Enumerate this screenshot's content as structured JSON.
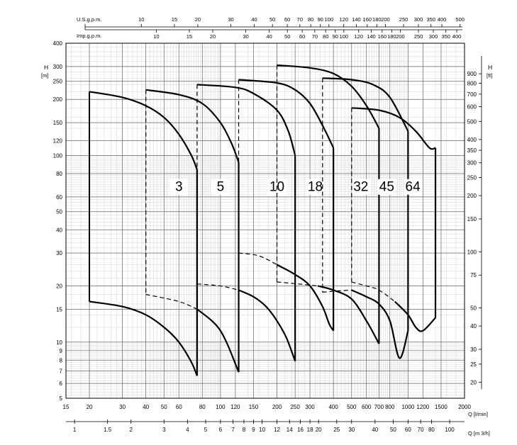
{
  "chart_data": {
    "type": "line",
    "x_scale": "log",
    "y_scale": "log",
    "xlim": [
      15,
      2000
    ],
    "ylim": [
      5,
      400
    ],
    "grid": true,
    "axes": {
      "x_bottom": {
        "label": "Q [l/min]",
        "ticks": [
          "15",
          "20",
          "30",
          "40",
          "50",
          "60",
          "80",
          "100",
          "120",
          "150",
          "200",
          "250",
          "300",
          "400",
          "500",
          "600",
          "700",
          "800",
          "1000",
          "1200",
          "1500",
          "2000"
        ]
      },
      "x_m3h": {
        "label": "Q [m 3/h]",
        "ticks": [
          {
            "v": 1,
            "t": "1"
          },
          {
            "v": 1.5,
            "t": "1.5"
          },
          {
            "v": 2,
            "t": "2"
          },
          {
            "v": 3,
            "t": "3"
          },
          {
            "v": 4,
            "t": "4"
          },
          {
            "v": 5,
            "t": "5"
          },
          {
            "v": 6,
            "t": "6"
          },
          {
            "v": 7,
            "t": "7"
          },
          {
            "v": 8,
            "t": "8"
          },
          {
            "v": 9,
            "t": "9"
          },
          {
            "v": 10,
            "t": "10"
          },
          {
            "v": 12,
            "t": "12"
          },
          {
            "v": 14,
            "t": "14"
          },
          {
            "v": 16,
            "t": "16"
          },
          {
            "v": 18,
            "t": "18"
          },
          {
            "v": 20,
            "t": "20"
          },
          {
            "v": 25,
            "t": "25"
          },
          {
            "v": 30,
            "t": "30"
          },
          {
            "v": 40,
            "t": "40"
          },
          {
            "v": 50,
            "t": "50"
          },
          {
            "v": 60,
            "t": "60"
          },
          {
            "v": 70,
            "t": "70"
          },
          {
            "v": 80,
            "t": "80"
          },
          {
            "v": 100,
            "t": "100"
          }
        ]
      },
      "x_usgpm": {
        "label": "U.S.g.p.m.",
        "ticks": [
          {
            "v": 10,
            "t": "10"
          },
          {
            "v": 15,
            "t": "15"
          },
          {
            "v": 20,
            "t": "20"
          },
          {
            "v": 30,
            "t": "30"
          },
          {
            "v": 40,
            "t": "40"
          },
          {
            "v": 50,
            "t": "50"
          },
          {
            "v": 60,
            "t": "60"
          },
          {
            "v": 70,
            "t": "70"
          },
          {
            "v": 80,
            "t": "80"
          },
          {
            "v": 90,
            "t": "90"
          },
          {
            "v": 100,
            "t": "100"
          },
          {
            "v": 120,
            "t": "120"
          },
          {
            "v": 140,
            "t": "140"
          },
          {
            "v": 160,
            "t": "160"
          },
          {
            "v": 180,
            "t": "180"
          },
          {
            "v": 200,
            "t": "200"
          },
          {
            "v": 250,
            "t": "250"
          },
          {
            "v": 300,
            "t": "300"
          },
          {
            "v": 350,
            "t": "350"
          },
          {
            "v": 400,
            "t": "400"
          },
          {
            "v": 500,
            "t": "500"
          }
        ]
      },
      "x_impgpm": {
        "label": "Imp.g.p.m.",
        "ticks": [
          {
            "v": 10,
            "t": "10"
          },
          {
            "v": 15,
            "t": "15"
          },
          {
            "v": 20,
            "t": "20"
          },
          {
            "v": 30,
            "t": "30"
          },
          {
            "v": 40,
            "t": "40"
          },
          {
            "v": 50,
            "t": "50"
          },
          {
            "v": 60,
            "t": "60"
          },
          {
            "v": 70,
            "t": "70"
          },
          {
            "v": 80,
            "t": "80"
          },
          {
            "v": 90,
            "t": "90"
          },
          {
            "v": 100,
            "t": "100"
          },
          {
            "v": 120,
            "t": "120"
          },
          {
            "v": 140,
            "t": "140"
          },
          {
            "v": 160,
            "t": "160"
          },
          {
            "v": 180,
            "t": "180"
          },
          {
            "v": 200,
            "t": "200"
          },
          {
            "v": 250,
            "t": "250"
          },
          {
            "v": 300,
            "t": "300"
          },
          {
            "v": 350,
            "t": "350"
          },
          {
            "v": 400,
            "t": "400"
          }
        ]
      },
      "y_left": {
        "label": "H",
        "unit": "[m]",
        "ticks": [
          "5",
          "6",
          "7",
          "8",
          "9",
          "10",
          "15",
          "20",
          "30",
          "40",
          "50",
          "60",
          "80",
          "100",
          "120",
          "150",
          "200",
          "250",
          "300",
          "400"
        ]
      },
      "y_right": {
        "label": "H",
        "unit": "[ft]",
        "ticks": [
          {
            "v": 20,
            "t": "20"
          },
          {
            "v": 25,
            "t": "25"
          },
          {
            "v": 30,
            "t": "30"
          },
          {
            "v": 40,
            "t": "40"
          },
          {
            "v": 50,
            "t": "50"
          },
          {
            "v": 75,
            "t": "75"
          },
          {
            "v": 100,
            "t": "100"
          },
          {
            "v": 150,
            "t": "150"
          },
          {
            "v": 200,
            "t": "200"
          },
          {
            "v": 250,
            "t": "250"
          },
          {
            "v": 300,
            "t": "300"
          },
          {
            "v": 350,
            "t": "350"
          },
          {
            "v": 400,
            "t": "400"
          },
          {
            "v": 500,
            "t": "500"
          },
          {
            "v": 600,
            "t": "600"
          },
          {
            "v": 700,
            "t": "700"
          },
          {
            "v": 800,
            "t": "800"
          },
          {
            "v": 900,
            "t": "900"
          }
        ]
      }
    },
    "series": [
      {
        "name": "3",
        "label_at": [
          60,
          65
        ],
        "q_min": 20,
        "q_max": 75,
        "max_curve": [
          [
            20,
            220
          ],
          [
            30,
            205
          ],
          [
            40,
            185
          ],
          [
            50,
            160
          ],
          [
            60,
            130
          ],
          [
            70,
            100
          ],
          [
            75,
            84
          ]
        ],
        "min_curve": [
          [
            20,
            16.5
          ],
          [
            30,
            15.5
          ],
          [
            40,
            14
          ],
          [
            50,
            12
          ],
          [
            60,
            10
          ],
          [
            70,
            7.8
          ],
          [
            75,
            6.6
          ]
        ],
        "dashed_left": [],
        "dashed_min": []
      },
      {
        "name": "5",
        "label_at": [
          100,
          65
        ],
        "q_min": 40,
        "q_max": 125,
        "max_curve": [
          [
            40,
            225
          ],
          [
            60,
            212
          ],
          [
            80,
            190
          ],
          [
            100,
            150
          ],
          [
            115,
            115
          ],
          [
            125,
            92
          ]
        ],
        "min_curve": [
          [
            75,
            15
          ],
          [
            90,
            13
          ],
          [
            100,
            11.5
          ],
          [
            110,
            9.5
          ],
          [
            125,
            6.9
          ]
        ],
        "dashed_left": [
          [
            40,
            225
          ],
          [
            40,
            18
          ]
        ],
        "dashed_min": [
          [
            40,
            18
          ],
          [
            60,
            16.5
          ],
          [
            75,
            15
          ]
        ]
      },
      {
        "name": "10",
        "label_at": [
          200,
          65
        ],
        "q_min": 75,
        "q_max": 250,
        "max_curve": [
          [
            75,
            240
          ],
          [
            120,
            232
          ],
          [
            150,
            215
          ],
          [
            200,
            175
          ],
          [
            230,
            135
          ],
          [
            250,
            100
          ]
        ],
        "min_curve": [
          [
            125,
            19
          ],
          [
            150,
            17.5
          ],
          [
            175,
            15.5
          ],
          [
            200,
            13
          ],
          [
            225,
            10.5
          ],
          [
            250,
            7.9
          ]
        ],
        "dashed_left": [
          [
            75,
            240
          ],
          [
            75,
            20.5
          ]
        ],
        "dashed_min": [
          [
            75,
            20.5
          ],
          [
            100,
            20
          ],
          [
            125,
            19
          ]
        ]
      },
      {
        "name": "18",
        "label_at": [
          320,
          65
        ],
        "q_min": 125,
        "q_max": 400,
        "max_curve": [
          [
            125,
            255
          ],
          [
            200,
            245
          ],
          [
            250,
            225
          ],
          [
            300,
            190
          ],
          [
            350,
            145
          ],
          [
            400,
            110
          ]
        ],
        "min_curve": [
          [
            200,
            26
          ],
          [
            250,
            23
          ],
          [
            300,
            20
          ],
          [
            350,
            15.5
          ],
          [
            380,
            12.5
          ],
          [
            400,
            11.5
          ]
        ],
        "dashed_left": [
          [
            125,
            255
          ],
          [
            125,
            30
          ]
        ],
        "dashed_min": [
          [
            125,
            30
          ],
          [
            160,
            29
          ],
          [
            200,
            26
          ]
        ]
      },
      {
        "name": "32",
        "label_at": [
          560,
          65
        ],
        "q_min": 200,
        "q_max": 700,
        "max_curve": [
          [
            200,
            305
          ],
          [
            300,
            295
          ],
          [
            400,
            275
          ],
          [
            500,
            235
          ],
          [
            600,
            185
          ],
          [
            700,
            140
          ]
        ],
        "min_curve": [
          [
            330,
            20
          ],
          [
            400,
            19
          ],
          [
            500,
            17
          ],
          [
            600,
            13
          ],
          [
            700,
            9.8
          ]
        ],
        "dashed_left": [
          [
            200,
            305
          ],
          [
            200,
            21
          ]
        ],
        "dashed_min": [
          [
            200,
            21
          ],
          [
            260,
            20.5
          ],
          [
            330,
            20
          ]
        ]
      },
      {
        "name": "45",
        "label_at": [
          770,
          65
        ],
        "q_min": 350,
        "q_max": 1000,
        "max_curve": [
          [
            350,
            260
          ],
          [
            500,
            255
          ],
          [
            650,
            240
          ],
          [
            800,
            205
          ],
          [
            1000,
            135
          ]
        ],
        "min_curve": [
          [
            500,
            19
          ],
          [
            600,
            17.5
          ],
          [
            700,
            16
          ],
          [
            800,
            13
          ],
          [
            900,
            8.2
          ],
          [
            1000,
            11.5
          ]
        ],
        "dashed_left": [
          [
            350,
            260
          ],
          [
            350,
            18.5
          ]
        ],
        "dashed_min": [
          [
            350,
            18.5
          ],
          [
            420,
            18.8
          ],
          [
            500,
            19
          ]
        ]
      },
      {
        "name": "64",
        "label_at": [
          1060,
          65
        ],
        "q_min": 500,
        "q_max": 1400,
        "max_curve": [
          [
            500,
            180
          ],
          [
            700,
            175
          ],
          [
            900,
            160
          ],
          [
            1100,
            135
          ],
          [
            1300,
            110
          ],
          [
            1400,
            110
          ]
        ],
        "min_curve": [
          [
            850,
            16.5
          ],
          [
            1000,
            14
          ],
          [
            1100,
            12
          ],
          [
            1200,
            11.5
          ],
          [
            1400,
            13.5
          ]
        ],
        "dashed_left": [
          [
            500,
            180
          ],
          [
            500,
            21
          ]
        ],
        "dashed_min": [
          [
            500,
            21
          ],
          [
            600,
            20
          ],
          [
            700,
            19
          ],
          [
            850,
            16.5
          ]
        ]
      }
    ]
  }
}
